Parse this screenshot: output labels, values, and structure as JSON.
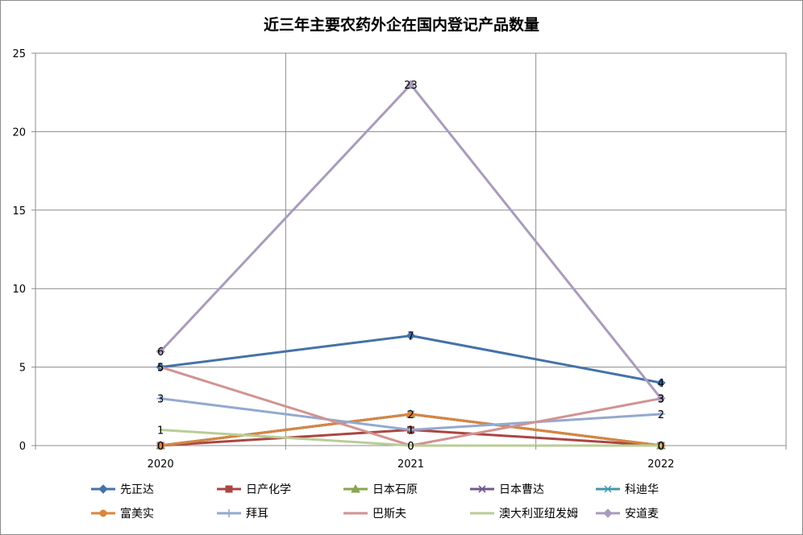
{
  "chart_data": {
    "type": "line",
    "title": "近三年主要农药外企在国内登记产品数量",
    "xlabel": "",
    "ylabel": "",
    "x": [
      "2020",
      "2021",
      "2022"
    ],
    "ylim": [
      0,
      25
    ],
    "yticks": [
      0,
      5,
      10,
      15,
      20,
      25
    ],
    "grid": true,
    "legend_position": "bottom",
    "series": [
      {
        "name": "先正达",
        "values": [
          5,
          7,
          4
        ],
        "color": "#4572a7",
        "marker": "diamond",
        "show_labels": true
      },
      {
        "name": "日产化学",
        "values": [
          0,
          1,
          0
        ],
        "color": "#aa4643",
        "marker": "square",
        "show_labels": true
      },
      {
        "name": "日本石原",
        "values": [
          0,
          2,
          0
        ],
        "color": "#89a54e",
        "marker": "triangle",
        "show_labels": false
      },
      {
        "name": "日本曹达",
        "values": [
          0,
          2,
          0
        ],
        "color": "#71588f",
        "marker": "x",
        "show_labels": false
      },
      {
        "name": "科迪华",
        "values": [
          0,
          2,
          0
        ],
        "color": "#4198af",
        "marker": "star",
        "show_labels": false
      },
      {
        "name": "富美实",
        "values": [
          0,
          2,
          0
        ],
        "color": "#db843d",
        "marker": "circle",
        "show_labels": true
      },
      {
        "name": "拜耳",
        "values": [
          3,
          1,
          2
        ],
        "color": "#93a9cf",
        "marker": "plus",
        "show_labels": true
      },
      {
        "name": "巴斯夫",
        "values": [
          5,
          0,
          3
        ],
        "color": "#d19392",
        "marker": "none",
        "show_labels": true
      },
      {
        "name": "澳大利亚纽发姆",
        "values": [
          1,
          0,
          0
        ],
        "color": "#b9cd96",
        "marker": "none",
        "show_labels": true
      },
      {
        "name": "安道麦",
        "values": [
          6,
          23,
          3
        ],
        "color": "#a99bbd",
        "marker": "diamond",
        "show_labels": true
      }
    ]
  }
}
